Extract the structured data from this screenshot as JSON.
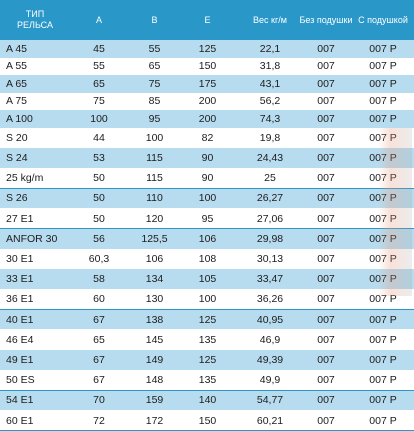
{
  "header": {
    "name": "ТИП\nРЕЛЬСА",
    "a": "A",
    "b": "B",
    "e": "E",
    "weight": "Вес кг/м",
    "no_pad": "Без подушки",
    "with_pad": "С подушкой"
  },
  "rows": [
    {
      "name": "A 45",
      "a": "45",
      "b": "55",
      "e": "125",
      "weight": "22,1",
      "no_pad": "007",
      "with_pad": "007 P"
    },
    {
      "name": "A 55",
      "a": "55",
      "b": "65",
      "e": "150",
      "weight": "31,8",
      "no_pad": "007",
      "with_pad": "007 P"
    },
    {
      "name": "A 65",
      "a": "65",
      "b": "75",
      "e": "175",
      "weight": "43,1",
      "no_pad": "007",
      "with_pad": "007 P"
    },
    {
      "name": "A 75",
      "a": "75",
      "b": "85",
      "e": "200",
      "weight": "56,2",
      "no_pad": "007",
      "with_pad": "007 P"
    },
    {
      "name": "A 100",
      "a": "100",
      "b": "95",
      "e": "200",
      "weight": "74,3",
      "no_pad": "007",
      "with_pad": "007 P"
    },
    {
      "name": "S 20",
      "a": "44",
      "b": "100",
      "e": "82",
      "weight": "19,8",
      "no_pad": "007",
      "with_pad": "007 P"
    },
    {
      "name": "S 24",
      "a": "53",
      "b": "115",
      "e": "90",
      "weight": "24,43",
      "no_pad": "007",
      "with_pad": "007 P"
    },
    {
      "name": "25 kg/m",
      "a": "50",
      "b": "115",
      "e": "90",
      "weight": "25",
      "no_pad": "007",
      "with_pad": "007 P"
    },
    {
      "name": "S 26",
      "a": "50",
      "b": "110",
      "e": "100",
      "weight": "26,27",
      "no_pad": "007",
      "with_pad": "007 P"
    },
    {
      "name": "27 E1",
      "a": "50",
      "b": "120",
      "e": "95",
      "weight": "27,06",
      "no_pad": "007",
      "with_pad": "007 P"
    },
    {
      "name": "ANFOR 30",
      "a": "56",
      "b": "125,5",
      "e": "106",
      "weight": "29,98",
      "no_pad": "007",
      "with_pad": "007 P"
    },
    {
      "name": "30 E1",
      "a": "60,3",
      "b": "106",
      "e": "108",
      "weight": "30,13",
      "no_pad": "007",
      "with_pad": "007 P"
    },
    {
      "name": "33 E1",
      "a": "58",
      "b": "134",
      "e": "105",
      "weight": "33,47",
      "no_pad": "007",
      "with_pad": "007 P"
    },
    {
      "name": "36 E1",
      "a": "60",
      "b": "130",
      "e": "100",
      "weight": "36,26",
      "no_pad": "007",
      "with_pad": "007 P"
    },
    {
      "name": "40 E1",
      "a": "67",
      "b": "138",
      "e": "125",
      "weight": "40,95",
      "no_pad": "007",
      "with_pad": "007 P"
    },
    {
      "name": "46 E4",
      "a": "65",
      "b": "145",
      "e": "135",
      "weight": "46,9",
      "no_pad": "007",
      "with_pad": "007 P"
    },
    {
      "name": "49 E1",
      "a": "67",
      "b": "149",
      "e": "125",
      "weight": "49,39",
      "no_pad": "007",
      "with_pad": "007 P"
    },
    {
      "name": "50 ES",
      "a": "67",
      "b": "148",
      "e": "135",
      "weight": "49,9",
      "no_pad": "007",
      "with_pad": "007 P"
    },
    {
      "name": "54 E1",
      "a": "70",
      "b": "159",
      "e": "140",
      "weight": "54,77",
      "no_pad": "007",
      "with_pad": "007 P"
    },
    {
      "name": "60 E1",
      "a": "72",
      "b": "172",
      "e": "150",
      "weight": "60,21",
      "no_pad": "007",
      "with_pad": "007 P"
    }
  ],
  "colors": {
    "header": "#2a97c9",
    "band": "#b7dcef",
    "white": "#ffffff"
  }
}
